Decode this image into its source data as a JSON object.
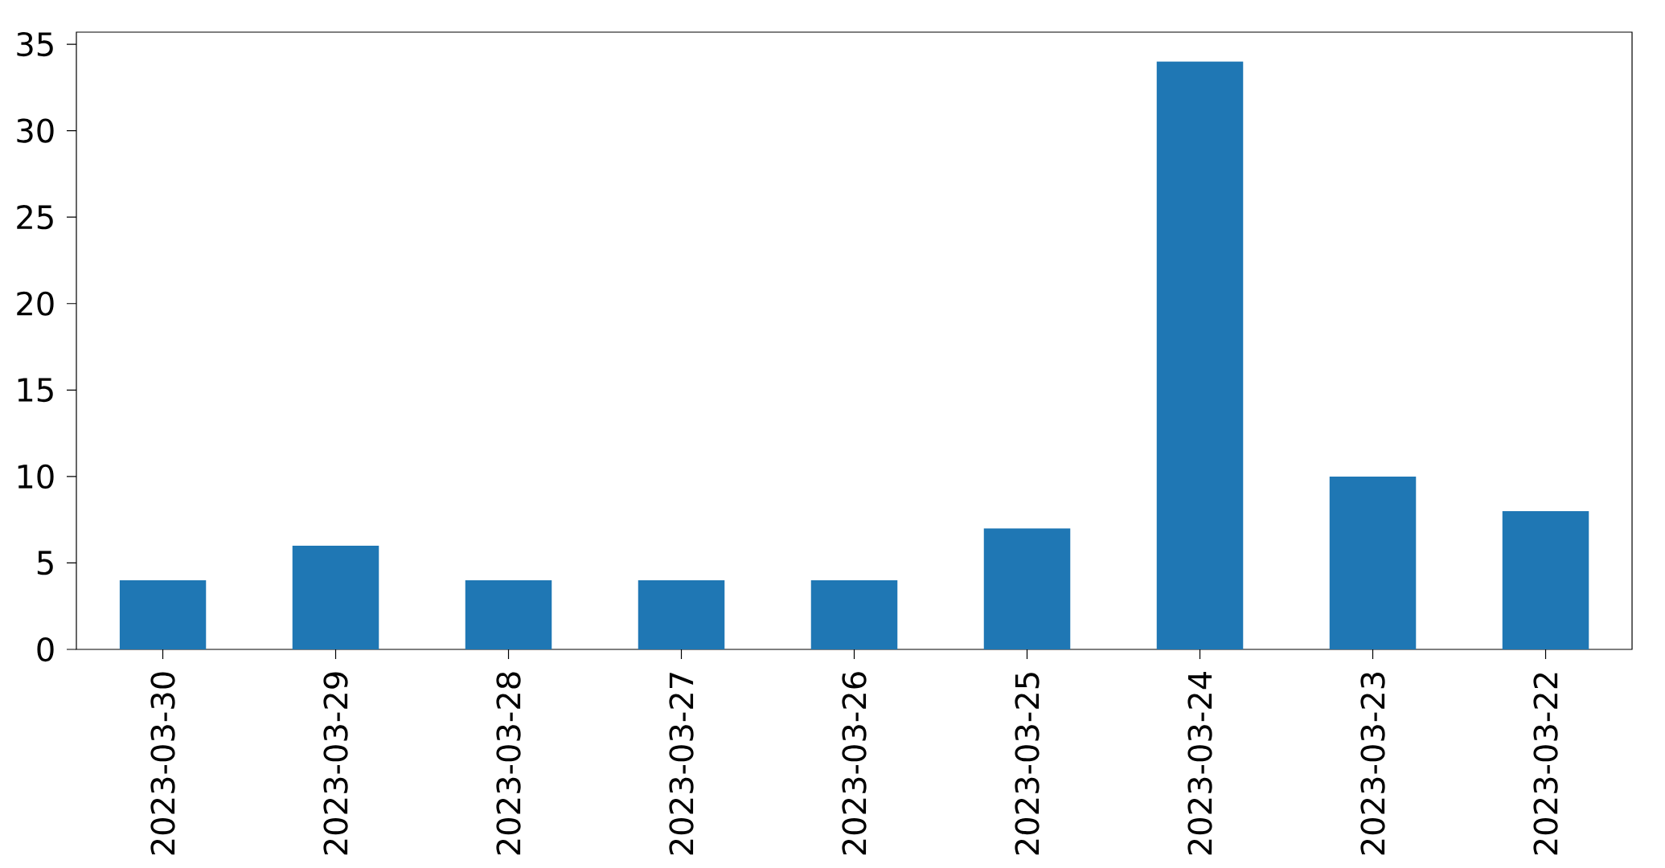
{
  "chart_data": {
    "type": "bar",
    "categories": [
      "2023-03-30",
      "2023-03-29",
      "2023-03-28",
      "2023-03-27",
      "2023-03-26",
      "2023-03-25",
      "2023-03-24",
      "2023-03-23",
      "2023-03-22"
    ],
    "values": [
      4,
      6,
      4,
      4,
      4,
      7,
      34,
      10,
      8
    ],
    "color": "#1f77b4",
    "ylim": [
      0,
      35.7
    ],
    "yticks": [
      0,
      5,
      10,
      15,
      20,
      25,
      30,
      35
    ]
  }
}
